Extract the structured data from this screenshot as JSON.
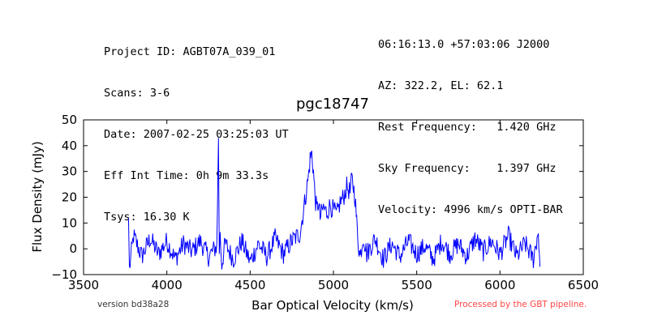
{
  "header_left": [
    "Project ID: AGBT07A_039_01",
    "Scans: 3-6",
    "Date: 2007-02-25 03:25:03 UT",
    "Eff Int Time: 0h 9m 33.3s",
    "Tsys: 16.30 K"
  ],
  "header_right": [
    "06:16:13.0 +57:03:06 J2000",
    "AZ: 322.2, EL: 62.1",
    "Rest Frequency:   1.420 GHz",
    "Sky Frequency:    1.397 GHz",
    "Velocity: 4996 km/s OPTI-BAR"
  ],
  "footer": {
    "version": "version bd38a28",
    "processed": "Processed by the GBT pipeline."
  },
  "colors": {
    "line": "#0000ff",
    "processed": "#ff4444"
  },
  "chart_data": {
    "type": "line",
    "title": "pgc18747",
    "xlabel": "Bar Optical Velocity (km/s)",
    "ylabel": "Flux Density (mJy)",
    "xlim": [
      3500,
      6500
    ],
    "ylim": [
      -10,
      50
    ],
    "xticks": [
      3500,
      4000,
      4500,
      5000,
      5500,
      6000,
      6500
    ],
    "yticks": [
      -10,
      0,
      10,
      20,
      30,
      40,
      50
    ],
    "grid": false,
    "series": [
      {
        "x": [
          3770,
          3775,
          3800,
          3850,
          3900,
          3950,
          4000,
          4050,
          4100,
          4150,
          4200,
          4250,
          4300,
          4310,
          4315,
          4320,
          4330,
          4350,
          4400,
          4450,
          4500,
          4550,
          4600,
          4650,
          4700,
          4750,
          4800,
          4850,
          4860,
          4870,
          4880,
          4890,
          4900,
          4910,
          4920,
          4940,
          4960,
          4980,
          5000,
          5020,
          5040,
          5060,
          5080,
          5100,
          5110,
          5120,
          5130,
          5140,
          5150,
          5160,
          5180,
          5200,
          5250,
          5300,
          5350,
          5400,
          5450,
          5500,
          5550,
          5600,
          5650,
          5700,
          5750,
          5800,
          5850,
          5900,
          5950,
          6000,
          6050,
          6100,
          6150,
          6200,
          6230,
          6240
        ],
        "y": [
          12,
          -8,
          5,
          -3,
          4,
          -2,
          3,
          -4,
          2,
          -1,
          3,
          -3,
          1,
          43,
          -2,
          5,
          -6,
          2,
          -4,
          3,
          -5,
          2,
          -3,
          4,
          -2,
          3,
          6,
          28,
          35,
          37,
          30,
          20,
          15,
          18,
          12,
          16,
          14,
          17,
          15,
          13,
          18,
          20,
          24,
          22,
          27,
          24,
          20,
          10,
          2,
          -3,
          5,
          -2,
          4,
          -4,
          2,
          -3,
          3,
          -2,
          1,
          -4,
          3,
          -2,
          2,
          -3,
          4,
          -1,
          3,
          -2,
          5,
          -3,
          2,
          -4,
          7,
          -7
        ]
      }
    ]
  }
}
